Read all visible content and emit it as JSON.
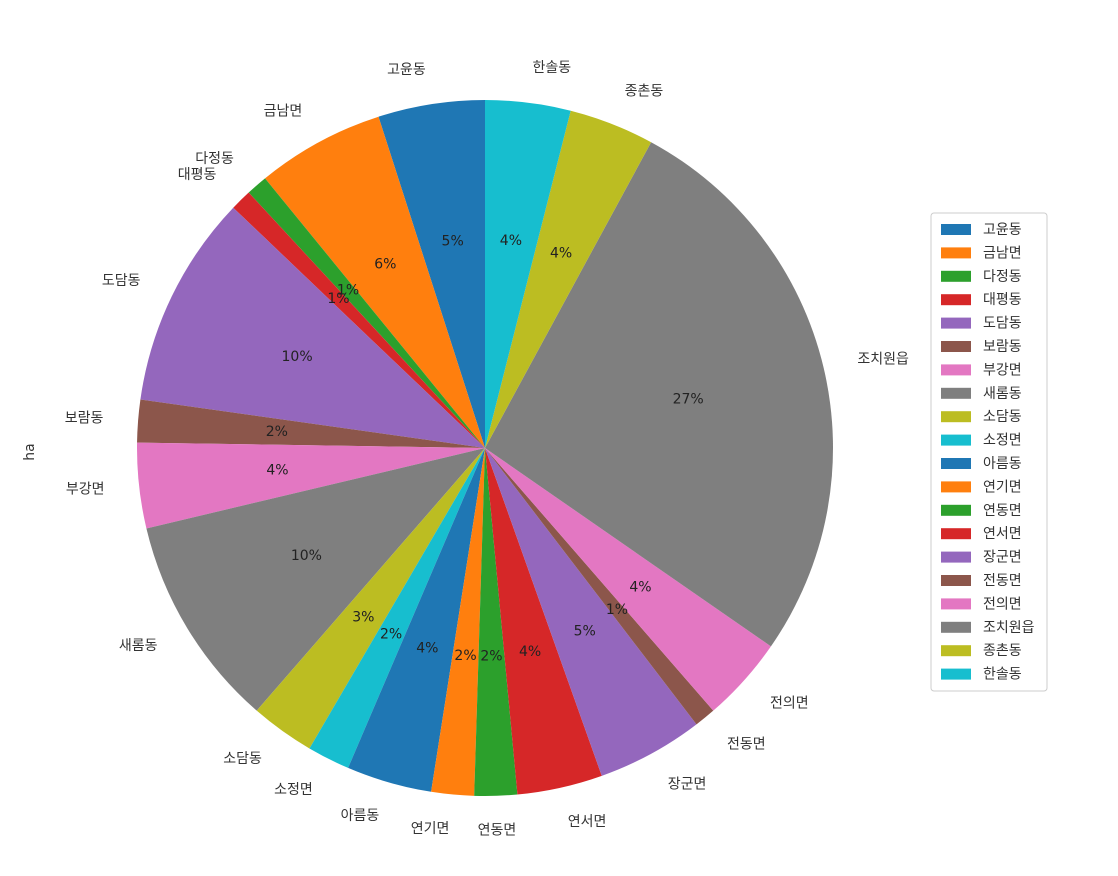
{
  "chart_data": {
    "type": "pie",
    "title": "",
    "ylabel": "ha",
    "autopct_format": "{pct}%",
    "legend_position": "right",
    "start_angle": "90 degrees, counter-clockwise",
    "slices": [
      {
        "label": "고윤동",
        "value": 5,
        "pct_label": "5%",
        "color": "#1f77b4"
      },
      {
        "label": "금남면",
        "value": 6,
        "pct_label": "6%",
        "color": "#ff7f0e"
      },
      {
        "label": "다정동",
        "value": 1,
        "pct_label": "1%",
        "color": "#2ca02c"
      },
      {
        "label": "대평동",
        "value": 1,
        "pct_label": "1%",
        "color": "#d62728"
      },
      {
        "label": "도담동",
        "value": 10,
        "pct_label": "10%",
        "color": "#9467bd"
      },
      {
        "label": "보람동",
        "value": 2,
        "pct_label": "2%",
        "color": "#8c564b"
      },
      {
        "label": "부강면",
        "value": 4,
        "pct_label": "4%",
        "color": "#e377c2"
      },
      {
        "label": "새롬동",
        "value": 10,
        "pct_label": "10%",
        "color": "#7f7f7f"
      },
      {
        "label": "소담동",
        "value": 3,
        "pct_label": "3%",
        "color": "#bcbd22"
      },
      {
        "label": "소정면",
        "value": 2,
        "pct_label": "2%",
        "color": "#17becf"
      },
      {
        "label": "아름동",
        "value": 4,
        "pct_label": "4%",
        "color": "#1f77b4"
      },
      {
        "label": "연기면",
        "value": 2,
        "pct_label": "2%",
        "color": "#ff7f0e"
      },
      {
        "label": "연동면",
        "value": 2,
        "pct_label": "2%",
        "color": "#2ca02c"
      },
      {
        "label": "연서면",
        "value": 4,
        "pct_label": "4%",
        "color": "#d62728"
      },
      {
        "label": "장군면",
        "value": 5,
        "pct_label": "5%",
        "color": "#9467bd"
      },
      {
        "label": "전동면",
        "value": 1,
        "pct_label": "1%",
        "color": "#8c564b"
      },
      {
        "label": "전의면",
        "value": 4,
        "pct_label": "4%",
        "color": "#e377c2"
      },
      {
        "label": "조치원읍",
        "value": 27,
        "pct_label": "27%",
        "color": "#7f7f7f"
      },
      {
        "label": "종촌동",
        "value": 4,
        "pct_label": "4%",
        "color": "#bcbd22"
      },
      {
        "label": "한솔동",
        "value": 4,
        "pct_label": "4%",
        "color": "#17becf"
      }
    ]
  }
}
